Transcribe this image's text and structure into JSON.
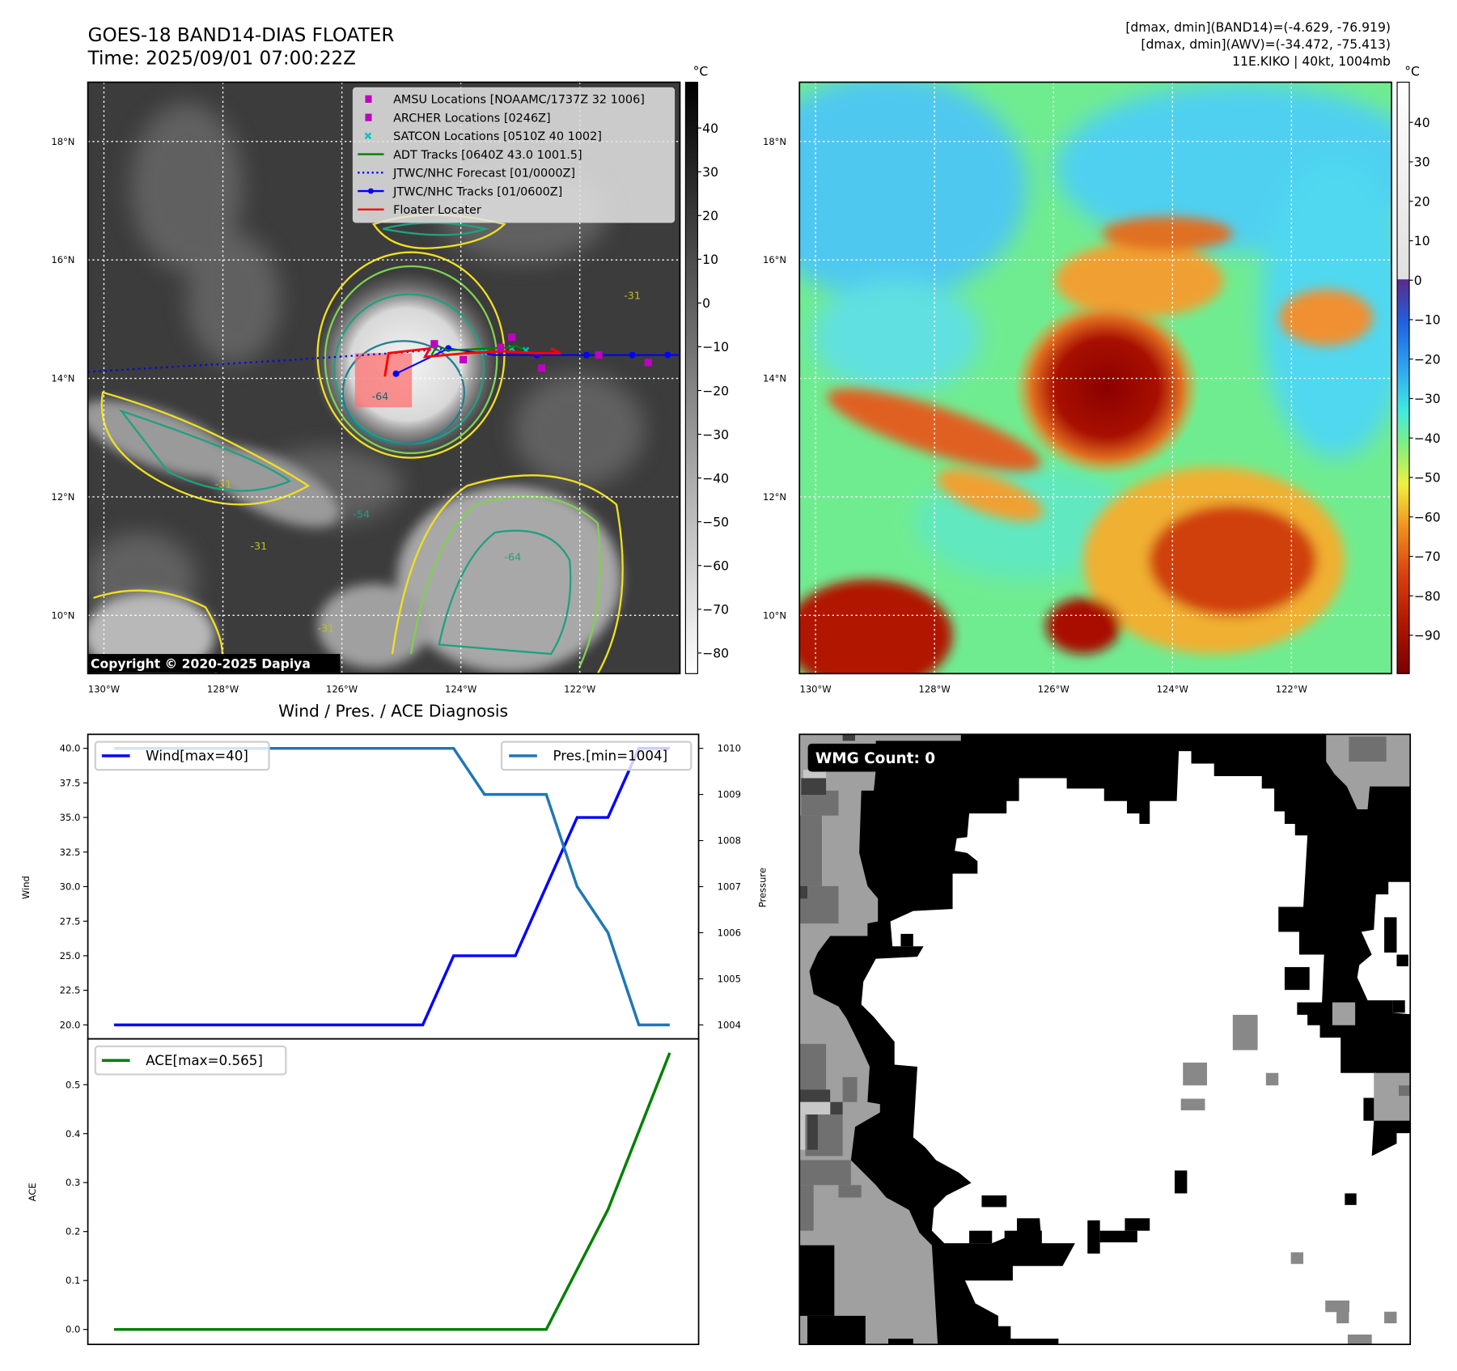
{
  "header": {
    "title": "GOES-18 BAND14-DIAS FLOATER",
    "time": "Time: 2025/09/01 07:00:22Z",
    "stats_band14": "[dmax, dmin](BAND14)=(-4.629, -76.919)",
    "stats_awv": "[dmax, dmin](AWV)=(-34.472, -75.413)",
    "storm": "11E.KIKO | 40kt, 1004mb"
  },
  "maps": {
    "lat_ticks": [
      {
        "v": 18,
        "label": "18°N"
      },
      {
        "v": 16,
        "label": "16°N"
      },
      {
        "v": 14,
        "label": "14°N"
      },
      {
        "v": 12,
        "label": "12°N"
      },
      {
        "v": 10,
        "label": "10°N"
      }
    ],
    "lon_ticks": [
      {
        "v": -130,
        "label": "130°W"
      },
      {
        "v": -128,
        "label": "128°W"
      },
      {
        "v": -126,
        "label": "126°W"
      },
      {
        "v": -124,
        "label": "124°W"
      },
      {
        "v": -122,
        "label": "122°W"
      }
    ],
    "lat_range": [
      9.0,
      19.0
    ],
    "lon_range": [
      -130.27,
      -120.3
    ],
    "copyright": "Copyright © 2020-2025 Dapiya",
    "contour_labels": [
      "-64",
      "-31",
      "-54",
      "-31",
      "-31",
      "-64",
      "-31"
    ],
    "legend": [
      {
        "label": "AMSU Locations [NOAAMC/1737Z 32 1006]",
        "icon": "square-marker",
        "color": "#c000c0"
      },
      {
        "label": "ARCHER Locations [0246Z]",
        "icon": "square-marker",
        "color": "#c000c0"
      },
      {
        "label": "SATCON Locations [0510Z 40 1002]",
        "icon": "x-marker",
        "color": "#00c0c0"
      },
      {
        "label": "ADT Tracks [0640Z 43.0 1001.5]",
        "icon": "solid-line",
        "color": "#008000"
      },
      {
        "label": "JTWC/NHC Forecast [01/0000Z]",
        "icon": "dotted-line",
        "color": "#0000ff"
      },
      {
        "label": "JTWC/NHC Tracks [01/0600Z]",
        "icon": "line-dot",
        "color": "#0000ff"
      },
      {
        "label": "Floater Locater",
        "icon": "solid-line",
        "color": "#ff0000"
      }
    ],
    "colorbar_unit": "°C",
    "colorbar1_ticks": [
      40,
      30,
      20,
      10,
      0,
      -10,
      -20,
      -30,
      -40,
      -50,
      -60,
      -70,
      -80
    ],
    "colorbar2_ticks": [
      40,
      30,
      20,
      10,
      0,
      -10,
      -20,
      -30,
      -40,
      -50,
      -60,
      -70,
      -80,
      -90
    ]
  },
  "wmg": {
    "label": "WMG Count: 0"
  },
  "chart_data": [
    {
      "type": "line",
      "title": "Wind / Pres. / ACE Diagnosis",
      "x": [
        0,
        1,
        2,
        3,
        4,
        5,
        6,
        7,
        8,
        9,
        10,
        11,
        12,
        13,
        14,
        15,
        16,
        17,
        18
      ],
      "series": [
        {
          "name": "Wind[max=40]",
          "axis": "left",
          "color": "#0000ff",
          "values": [
            20,
            20,
            20,
            20,
            20,
            20,
            20,
            20,
            20,
            20,
            20,
            25,
            25,
            25,
            30,
            35,
            35,
            40,
            40
          ]
        },
        {
          "name": "Pres.[min=1004]",
          "axis": "right",
          "color": "#1f77b4",
          "values": [
            1010,
            1010,
            1010,
            1010,
            1010,
            1010,
            1010,
            1010,
            1010,
            1010,
            1010,
            1010,
            1009,
            1009,
            1009,
            1007,
            1006,
            1004,
            1004
          ]
        }
      ],
      "ylabel": "Wind",
      "ylabel_right": "Pressure",
      "yticks": [
        "20.0",
        "22.5",
        "25.0",
        "27.5",
        "30.0",
        "32.5",
        "35.0",
        "37.5",
        "40.0"
      ],
      "yticks_right": [
        "1004",
        "1005",
        "1006",
        "1007",
        "1008",
        "1009",
        "1010"
      ],
      "ylim": [
        18.8,
        41.2
      ],
      "legend": [
        "top-left",
        "top-right"
      ]
    },
    {
      "type": "line",
      "x": [
        0,
        1,
        2,
        3,
        4,
        5,
        6,
        7,
        8,
        9,
        10,
        11,
        12,
        13,
        14,
        15,
        16,
        17,
        18
      ],
      "series": [
        {
          "name": "ACE[max=0.565]",
          "color": "#008000",
          "values": [
            0,
            0,
            0,
            0,
            0,
            0,
            0,
            0,
            0,
            0,
            0,
            0,
            0,
            0,
            0,
            0.1225,
            0.245,
            0.405,
            0.565
          ]
        }
      ],
      "ylabel": "ACE",
      "yticks": [
        "0.0",
        "0.1",
        "0.2",
        "0.3",
        "0.4",
        "0.5"
      ],
      "ylim": [
        -0.03,
        0.6
      ],
      "legend": "top-left"
    }
  ]
}
